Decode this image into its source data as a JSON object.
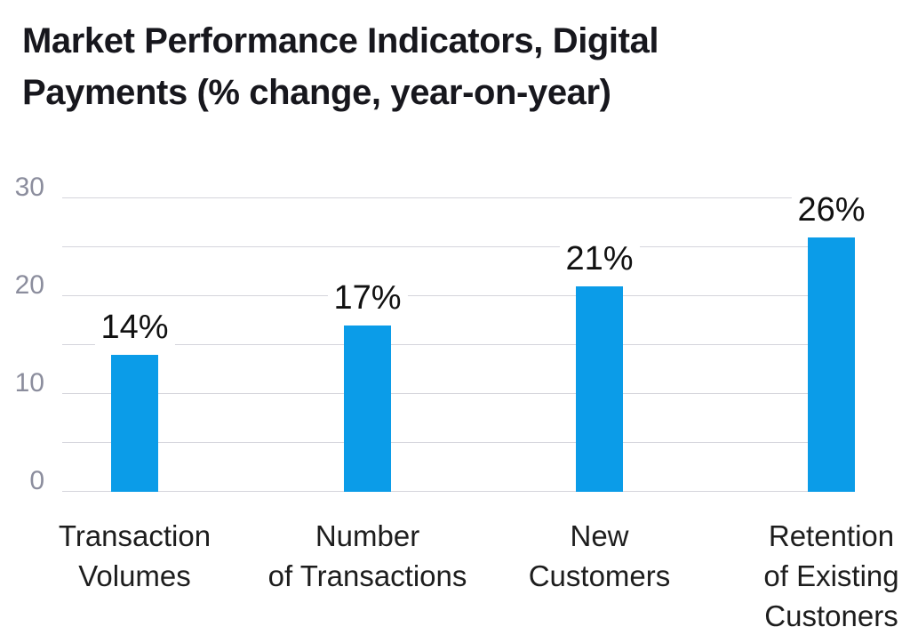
{
  "title": {
    "line1": "Market Performance Indicators, Digital",
    "line2": "Payments (% change, year-on-year)"
  },
  "colors": {
    "bar": "#0b9ce8",
    "gridline": "#d5d5dc",
    "axis_tick_label": "#8b8d9d",
    "title_text": "#17171d",
    "data_label": "#111111",
    "category_label": "#1d1d1d",
    "background": "#ffffff"
  },
  "chart_data": {
    "type": "bar",
    "title": "Market Performance Indicators, Digital Payments (% change, year-on-year)",
    "categories": [
      "Transaction Volumes",
      "Number of Transactions",
      "New Customers",
      "Retention of Existing Custoners"
    ],
    "category_lines": [
      [
        "Transaction",
        "Volumes"
      ],
      [
        "Number",
        "of Transactions"
      ],
      [
        "New",
        "Customers"
      ],
      [
        "Retention",
        "of Existing",
        "Custoners"
      ]
    ],
    "values": [
      14,
      17,
      21,
      26
    ],
    "data_labels": [
      "14%",
      "17%",
      "21%",
      "26%"
    ],
    "xlabel": "",
    "ylabel": "",
    "ylim": [
      0,
      30
    ],
    "yticks": [
      0,
      10,
      20,
      30
    ],
    "gridlines": [
      0,
      5,
      10,
      15,
      20,
      25,
      30
    ],
    "grid": true,
    "legend": false
  }
}
